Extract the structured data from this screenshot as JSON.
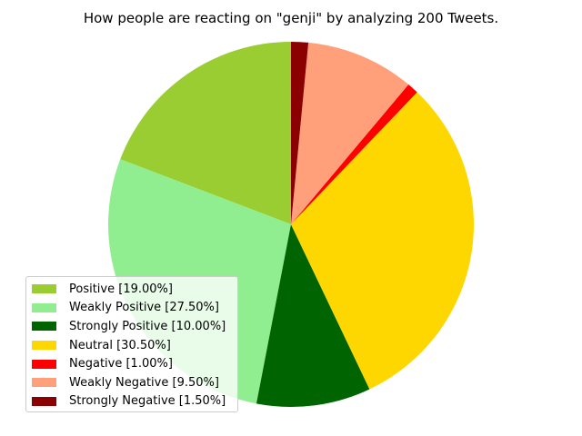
{
  "chart_data": {
    "type": "pie",
    "title": "How people are reacting on \"genji\" by analyzing 200 Tweets.",
    "start_angle_deg": 90,
    "direction": "counterclockwise",
    "legend_position": "lower-left",
    "slices": [
      {
        "label": "Positive [19.00%]",
        "value": 19.0,
        "color": "#9acd32"
      },
      {
        "label": "Weakly Positive [27.50%]",
        "value": 27.5,
        "color": "#90ee90"
      },
      {
        "label": "Strongly Positive [10.00%]",
        "value": 10.0,
        "color": "#006400"
      },
      {
        "label": "Neutral [30.50%]",
        "value": 30.5,
        "color": "#ffd700"
      },
      {
        "label": "Negative [1.00%]",
        "value": 1.0,
        "color": "#ff0000"
      },
      {
        "label": "Weakly Negative [9.50%]",
        "value": 9.5,
        "color": "#ffa07a"
      },
      {
        "label": "Strongly Negative [1.50%]",
        "value": 1.5,
        "color": "#8b0000"
      }
    ]
  }
}
